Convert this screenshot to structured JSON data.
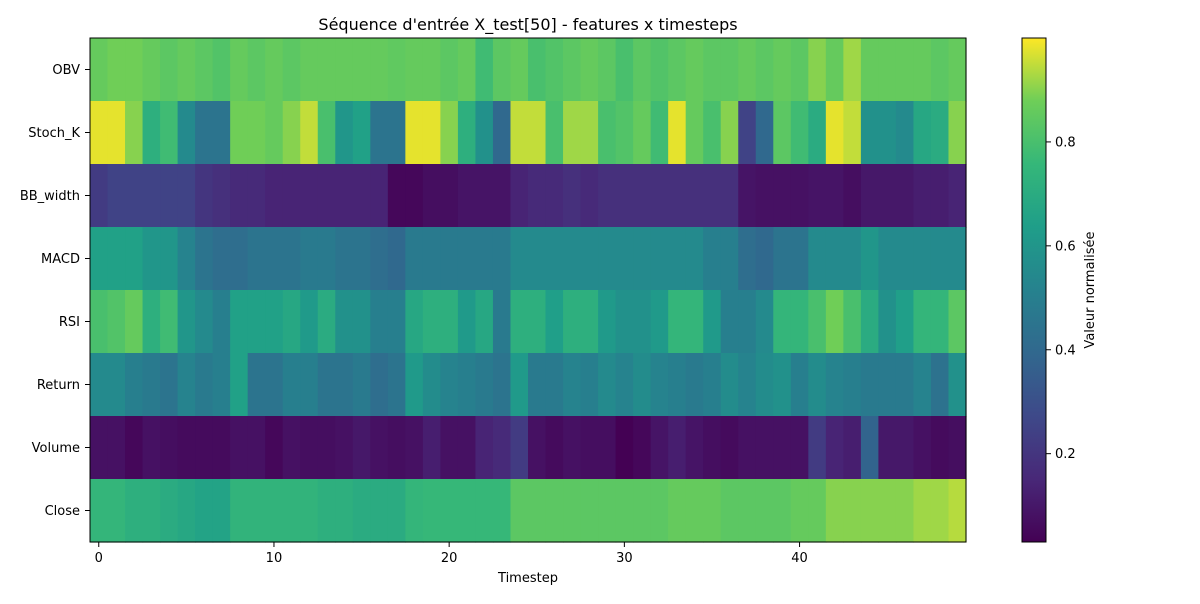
{
  "chart_data": {
    "type": "heatmap",
    "title": "Séquence d'entrée X_test[50] - features x timesteps",
    "xlabel": "Timestep",
    "ylabel": "",
    "x_ticks": [
      0,
      10,
      20,
      30,
      40
    ],
    "x_range": [
      -0.5,
      49.5
    ],
    "rows": [
      "OBV",
      "Stoch_K",
      "BB_width",
      "MACD",
      "RSI",
      "Return",
      "Volume",
      "Close"
    ],
    "colorbar": {
      "label": "Valeur normalisée",
      "range": [
        0.03,
        1.0
      ],
      "ticks": [
        0.2,
        0.4,
        0.6,
        0.8
      ],
      "colormap": "viridis"
    },
    "values": [
      [
        0.86,
        0.88,
        0.88,
        0.86,
        0.84,
        0.86,
        0.84,
        0.82,
        0.86,
        0.84,
        0.86,
        0.84,
        0.86,
        0.86,
        0.86,
        0.86,
        0.86,
        0.85,
        0.86,
        0.86,
        0.84,
        0.86,
        0.78,
        0.84,
        0.86,
        0.8,
        0.82,
        0.84,
        0.86,
        0.84,
        0.8,
        0.84,
        0.82,
        0.84,
        0.86,
        0.84,
        0.84,
        0.86,
        0.84,
        0.86,
        0.84,
        0.9,
        0.86,
        0.92,
        0.86,
        0.86,
        0.86,
        0.86,
        0.84,
        0.86
      ],
      [
        0.98,
        0.98,
        0.9,
        0.72,
        0.78,
        0.55,
        0.45,
        0.45,
        0.88,
        0.88,
        0.86,
        0.9,
        0.95,
        0.8,
        0.6,
        0.65,
        0.45,
        0.45,
        0.98,
        0.98,
        0.9,
        0.72,
        0.58,
        0.4,
        0.95,
        0.95,
        0.8,
        0.92,
        0.92,
        0.8,
        0.82,
        0.86,
        0.78,
        0.98,
        0.86,
        0.8,
        0.9,
        0.25,
        0.4,
        0.84,
        0.78,
        0.7,
        0.98,
        0.95,
        0.58,
        0.58,
        0.55,
        0.68,
        0.7,
        0.9
      ],
      [
        0.22,
        0.25,
        0.25,
        0.25,
        0.25,
        0.25,
        0.2,
        0.18,
        0.16,
        0.16,
        0.14,
        0.14,
        0.14,
        0.14,
        0.14,
        0.14,
        0.14,
        0.05,
        0.05,
        0.07,
        0.07,
        0.09,
        0.09,
        0.09,
        0.14,
        0.16,
        0.16,
        0.18,
        0.16,
        0.18,
        0.18,
        0.18,
        0.18,
        0.18,
        0.18,
        0.18,
        0.18,
        0.09,
        0.08,
        0.08,
        0.08,
        0.09,
        0.09,
        0.07,
        0.1,
        0.1,
        0.1,
        0.12,
        0.12,
        0.14
      ],
      [
        0.65,
        0.65,
        0.65,
        0.6,
        0.6,
        0.52,
        0.45,
        0.42,
        0.42,
        0.45,
        0.45,
        0.45,
        0.48,
        0.48,
        0.45,
        0.45,
        0.42,
        0.4,
        0.48,
        0.48,
        0.48,
        0.48,
        0.48,
        0.48,
        0.55,
        0.55,
        0.55,
        0.55,
        0.55,
        0.55,
        0.55,
        0.55,
        0.55,
        0.55,
        0.55,
        0.5,
        0.5,
        0.42,
        0.4,
        0.45,
        0.45,
        0.55,
        0.55,
        0.55,
        0.6,
        0.55,
        0.55,
        0.55,
        0.55,
        0.55
      ],
      [
        0.8,
        0.82,
        0.86,
        0.72,
        0.78,
        0.6,
        0.55,
        0.5,
        0.65,
        0.65,
        0.65,
        0.68,
        0.62,
        0.7,
        0.58,
        0.58,
        0.5,
        0.5,
        0.68,
        0.72,
        0.72,
        0.62,
        0.68,
        0.48,
        0.72,
        0.72,
        0.64,
        0.72,
        0.72,
        0.62,
        0.58,
        0.58,
        0.62,
        0.75,
        0.75,
        0.62,
        0.5,
        0.5,
        0.55,
        0.75,
        0.75,
        0.8,
        0.88,
        0.8,
        0.7,
        0.58,
        0.64,
        0.75,
        0.75,
        0.84
      ],
      [
        0.55,
        0.55,
        0.5,
        0.48,
        0.45,
        0.52,
        0.48,
        0.5,
        0.65,
        0.45,
        0.45,
        0.5,
        0.5,
        0.45,
        0.45,
        0.48,
        0.42,
        0.45,
        0.62,
        0.56,
        0.52,
        0.5,
        0.48,
        0.45,
        0.62,
        0.48,
        0.48,
        0.52,
        0.5,
        0.55,
        0.52,
        0.56,
        0.52,
        0.5,
        0.48,
        0.5,
        0.56,
        0.52,
        0.56,
        0.58,
        0.5,
        0.56,
        0.52,
        0.5,
        0.48,
        0.48,
        0.48,
        0.52,
        0.44,
        0.58
      ],
      [
        0.08,
        0.08,
        0.05,
        0.08,
        0.07,
        0.06,
        0.06,
        0.06,
        0.08,
        0.08,
        0.05,
        0.08,
        0.07,
        0.07,
        0.08,
        0.1,
        0.08,
        0.07,
        0.08,
        0.12,
        0.08,
        0.08,
        0.14,
        0.16,
        0.22,
        0.08,
        0.06,
        0.08,
        0.07,
        0.07,
        0.03,
        0.05,
        0.09,
        0.12,
        0.09,
        0.07,
        0.06,
        0.08,
        0.08,
        0.08,
        0.08,
        0.22,
        0.14,
        0.12,
        0.38,
        0.1,
        0.1,
        0.08,
        0.06,
        0.07
      ],
      [
        0.75,
        0.75,
        0.72,
        0.72,
        0.7,
        0.68,
        0.66,
        0.66,
        0.74,
        0.74,
        0.74,
        0.74,
        0.74,
        0.72,
        0.72,
        0.7,
        0.7,
        0.7,
        0.75,
        0.76,
        0.76,
        0.76,
        0.76,
        0.76,
        0.84,
        0.84,
        0.84,
        0.84,
        0.84,
        0.84,
        0.84,
        0.84,
        0.84,
        0.86,
        0.86,
        0.86,
        0.84,
        0.84,
        0.84,
        0.84,
        0.86,
        0.86,
        0.9,
        0.9,
        0.9,
        0.9,
        0.9,
        0.92,
        0.92,
        0.94
      ]
    ]
  }
}
